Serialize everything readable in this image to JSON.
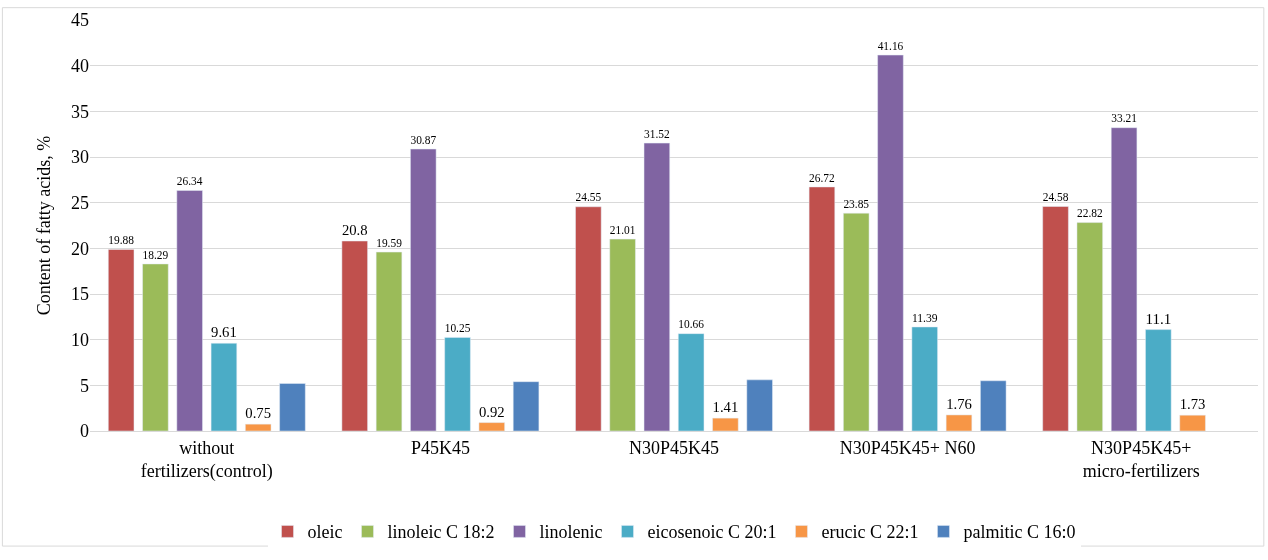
{
  "chart_data": {
    "type": "bar",
    "ylabel": "Content of fatty acids, %",
    "categories": [
      "without\nfertilizers(control)",
      "P45K45",
      "N30P45K45",
      "N30P45K45+ N60",
      "N30P45K45+\nmicro-fertilizers"
    ],
    "series": [
      {
        "name": "oleic",
        "color": "#c0504d",
        "values": [
          19.88,
          20.8,
          24.55,
          26.72,
          24.58
        ],
        "value_labels": [
          "19.88",
          "20.8",
          "24.55",
          "26.72",
          "24.58"
        ]
      },
      {
        "name": "linoleic C 18:2",
        "color": "#9bbb59",
        "values": [
          18.29,
          19.59,
          21.01,
          23.85,
          22.82
        ],
        "value_labels": [
          "18.29",
          "19.59",
          "21.01",
          "23.85",
          "22.82"
        ]
      },
      {
        "name": "linolenic",
        "color": "#8064a2",
        "values": [
          26.34,
          30.87,
          31.52,
          41.16,
          33.21
        ],
        "value_labels": [
          "26.34",
          "30.87",
          "31.52",
          "41.16",
          "33.21"
        ]
      },
      {
        "name": "eicosenoic C 20:1",
        "color": "#4bacc6",
        "values": [
          9.61,
          10.25,
          10.66,
          11.39,
          11.1
        ],
        "value_labels": [
          "9.61",
          "10.25",
          "10.66",
          "11.39",
          "11.1"
        ]
      },
      {
        "name": "erucic C 22:1",
        "color": "#f79646",
        "values": [
          0.75,
          0.92,
          1.41,
          1.76,
          1.73
        ],
        "value_labels": [
          "0.75",
          "0.92",
          "1.41",
          "1.76",
          "1.73"
        ]
      },
      {
        "name": "palmitic C 16:0",
        "color": "#4f81bd",
        "values": [
          5.2,
          5.4,
          5.6,
          5.5,
          null
        ]
      }
    ],
    "ylim": [
      0,
      45
    ],
    "yticks": [
      0,
      5,
      10,
      15,
      20,
      25,
      30,
      35,
      40,
      45
    ],
    "grid": "y",
    "legend": "bottom"
  }
}
